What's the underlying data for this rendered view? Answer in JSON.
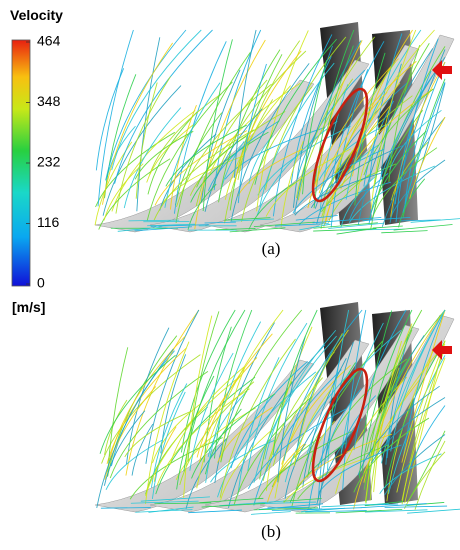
{
  "colorbar": {
    "title": "Velocity",
    "unit": "[m/s]",
    "range": [
      0,
      464
    ],
    "ticks": [
      0,
      116,
      232,
      348,
      464
    ]
  },
  "panels": [
    {
      "label": "(a)"
    },
    {
      "label": "(b)"
    }
  ]
}
